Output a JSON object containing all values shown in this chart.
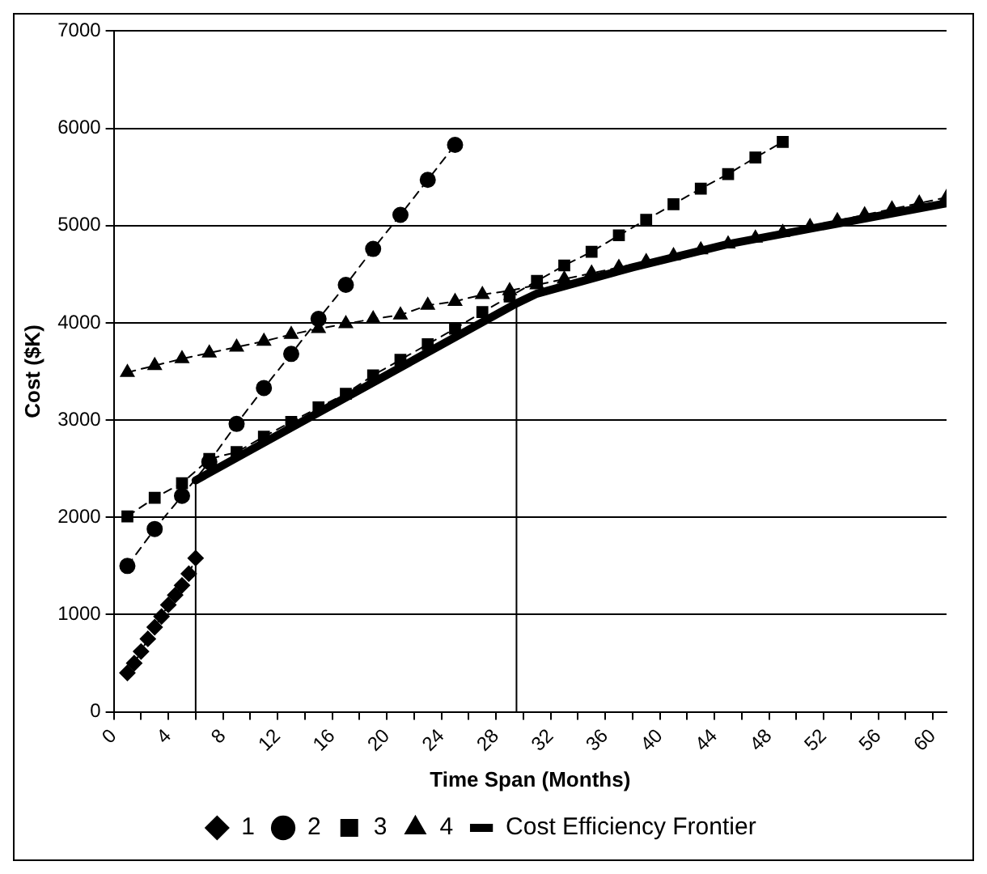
{
  "chart_data": {
    "type": "line",
    "xlabel": "Time Span (Months)",
    "ylabel": "Cost ($K)",
    "xlim": [
      0,
      61
    ],
    "ylim": [
      0,
      7000
    ],
    "xticks": [
      0,
      {
        "value": 2,
        "label": null
      },
      4,
      {
        "value": 6,
        "label": null
      },
      8,
      {
        "value": 10,
        "label": null
      },
      12,
      {
        "value": 14,
        "label": null
      },
      16,
      {
        "value": 18,
        "label": null
      },
      20,
      {
        "value": 22,
        "label": null
      },
      24,
      {
        "value": 26,
        "label": null
      },
      28,
      {
        "value": 30,
        "label": null
      },
      32,
      {
        "value": 34,
        "label": null
      },
      36,
      {
        "value": 38,
        "label": null
      },
      40,
      {
        "value": 42,
        "label": null
      },
      44,
      {
        "value": 46,
        "label": null
      },
      48,
      {
        "value": 50,
        "label": null
      },
      52,
      {
        "value": 54,
        "label": null
      },
      56,
      {
        "value": 58,
        "label": null
      },
      60
    ],
    "yticks": [
      0,
      1000,
      2000,
      3000,
      4000,
      5000,
      6000,
      7000
    ],
    "grid": "y",
    "legend": "bottom",
    "ref_lines": [
      {
        "axis": "x",
        "value": 6
      },
      {
        "axis": "x",
        "value": 29.5
      }
    ],
    "series": [
      {
        "name": "1",
        "color": "#000000",
        "marker": "diamond",
        "line_style": "dotted",
        "x": [
          1,
          1.5,
          2,
          2.5,
          3,
          3.5,
          4,
          4.5,
          5,
          5.5,
          6
        ],
        "values": [
          400,
          500,
          620,
          750,
          870,
          980,
          1100,
          1200,
          1300,
          1420,
          1580
        ]
      },
      {
        "name": "2",
        "color": "#000000",
        "marker": "circle",
        "line_style": "dashed",
        "x": [
          1,
          3,
          5,
          7,
          9,
          11,
          13,
          15,
          17,
          19,
          21,
          23,
          25
        ],
        "values": [
          1500,
          1880,
          2220,
          2570,
          2960,
          3330,
          3680,
          4040,
          4390,
          4760,
          5110,
          5470,
          5830
        ]
      },
      {
        "name": "3",
        "color": "#000000",
        "marker": "square",
        "line_style": "dashed",
        "x": [
          1,
          3,
          5,
          7,
          9,
          11,
          13,
          15,
          17,
          19,
          21,
          23,
          25,
          27,
          29,
          31,
          33,
          35,
          37,
          39,
          41,
          43,
          45,
          47,
          49
        ],
        "values": [
          2010,
          2200,
          2350,
          2600,
          2670,
          2830,
          2980,
          3130,
          3270,
          3460,
          3620,
          3780,
          3940,
          4110,
          4270,
          4430,
          4590,
          4730,
          4900,
          5060,
          5220,
          5380,
          5530,
          5700,
          5860
        ]
      },
      {
        "name": "4",
        "color": "#000000",
        "marker": "triangle",
        "line_style": "dashed",
        "x": [
          1,
          3,
          5,
          7,
          9,
          11,
          13,
          15,
          17,
          19,
          21,
          23,
          25,
          27,
          29,
          31,
          33,
          35,
          37,
          39,
          41,
          43,
          45,
          47,
          49,
          51,
          53,
          55,
          57,
          59,
          61
        ],
        "values": [
          3490,
          3560,
          3630,
          3690,
          3750,
          3810,
          3880,
          3940,
          3990,
          4040,
          4080,
          4180,
          4220,
          4290,
          4330,
          4390,
          4450,
          4510,
          4570,
          4630,
          4690,
          4750,
          4810,
          4870,
          4930,
          4990,
          5050,
          5110,
          5170,
          5230,
          5290
        ]
      },
      {
        "name": "Cost Efficiency Frontier",
        "color": "#000000",
        "marker": "none",
        "line_style": "solid",
        "x": [
          6,
          29.5,
          31,
          38,
          45,
          61
        ],
        "values": [
          2380,
          4200,
          4300,
          4570,
          4810,
          5230
        ]
      }
    ]
  }
}
